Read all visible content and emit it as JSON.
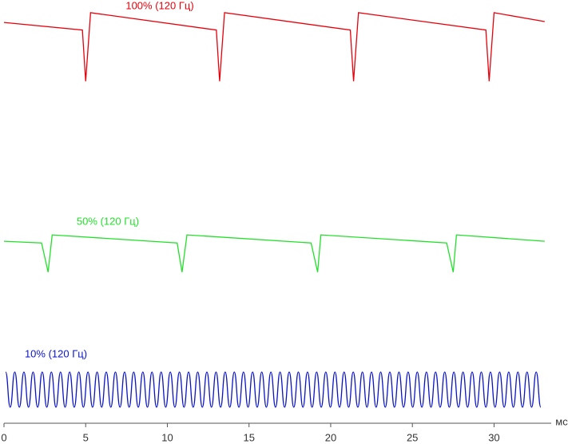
{
  "chart_data": {
    "type": "line",
    "x_unit_label": "мс",
    "xlim": [
      0,
      33.5
    ],
    "xticks": [
      0,
      5,
      10,
      15,
      20,
      25,
      30
    ],
    "ylim": [
      0,
      100
    ],
    "series": [
      {
        "name": "100% (120 Гц)",
        "color": "#e8000b",
        "x": [
          0,
          4.8,
          5.0,
          5.3,
          13.0,
          13.2,
          13.5,
          21.2,
          21.4,
          21.7,
          29.5,
          29.7,
          30.0,
          33.1
        ],
        "values": [
          94.7,
          92.9,
          80.8,
          97.0,
          92.9,
          80.8,
          97.0,
          92.9,
          80.8,
          97.0,
          92.9,
          80.8,
          97.0,
          94.9
        ]
      },
      {
        "name": "50% (120 Гц)",
        "color": "#22e02a",
        "x": [
          0,
          2.3,
          2.7,
          2.95,
          10.6,
          10.9,
          11.2,
          18.8,
          19.2,
          19.4,
          27.1,
          27.5,
          27.7,
          33.1
        ],
        "values": [
          43.0,
          42.6,
          35.7,
          44.5,
          42.6,
          35.7,
          44.5,
          42.6,
          35.7,
          44.5,
          42.6,
          35.7,
          44.5,
          43.0
        ]
      },
      {
        "name": "10% (120 Гц)",
        "color": "#0a14c8",
        "smooth": true,
        "x": [
          0.1,
          0.38,
          0.66,
          0.94,
          1.22,
          1.5,
          1.78,
          2.06,
          2.34,
          2.62,
          2.9,
          3.18,
          3.46,
          3.74,
          4.02,
          4.3,
          4.58,
          4.86,
          5.14,
          5.42,
          5.7,
          5.98,
          6.26,
          6.54,
          6.82,
          7.1,
          7.38,
          7.66,
          7.94,
          8.22,
          8.5,
          8.78,
          9.06,
          9.34,
          9.62,
          9.9,
          10.18,
          10.46,
          10.74,
          11.02,
          11.3,
          11.58,
          11.86,
          12.14,
          12.42,
          12.7,
          12.98,
          13.26,
          13.54,
          13.82,
          14.1,
          14.38,
          14.66,
          14.94,
          15.22,
          15.5,
          15.78,
          16.06,
          16.34,
          16.62,
          16.9,
          17.18,
          17.46,
          17.74,
          18.02,
          18.3,
          18.58,
          18.86,
          19.14,
          19.42,
          19.7,
          19.98,
          20.26,
          20.54,
          20.82,
          21.1,
          21.38,
          21.66,
          21.94,
          22.22,
          22.5,
          22.78,
          23.06,
          23.34,
          23.62,
          23.9,
          24.18,
          24.46,
          24.74,
          25.02,
          25.3,
          25.58,
          25.86,
          26.14,
          26.42,
          26.7,
          26.98,
          27.26,
          27.54,
          27.82,
          28.1,
          28.38,
          28.66,
          28.94,
          29.22,
          29.5,
          29.78,
          30.06,
          30.34,
          30.62,
          30.9,
          31.18,
          31.46,
          31.74,
          32.02,
          32.3,
          32.58,
          32.86
        ],
        "values": [
          12.1,
          3.8,
          12.1,
          3.8,
          12.1,
          3.8,
          12.1,
          3.8,
          12.1,
          3.8,
          12.1,
          3.8,
          12.1,
          3.8,
          12.1,
          3.8,
          12.1,
          3.8,
          12.1,
          3.8,
          12.1,
          3.8,
          12.1,
          3.8,
          12.1,
          3.8,
          12.1,
          3.8,
          12.1,
          3.8,
          12.1,
          3.8,
          12.1,
          3.8,
          12.1,
          3.8,
          12.1,
          3.8,
          12.1,
          3.8,
          12.1,
          3.8,
          12.1,
          3.8,
          12.1,
          3.8,
          12.1,
          3.8,
          12.1,
          3.8,
          12.1,
          3.8,
          12.1,
          3.8,
          12.1,
          3.8,
          12.1,
          3.8,
          12.1,
          3.8,
          12.1,
          3.8,
          12.1,
          3.8,
          12.1,
          3.8,
          12.1,
          3.8,
          12.1,
          3.8,
          12.1,
          3.8,
          12.1,
          3.8,
          12.1,
          3.8,
          12.1,
          3.8,
          12.1,
          3.8,
          12.1,
          3.8,
          12.1,
          3.8,
          12.1,
          3.8,
          12.1,
          3.8,
          12.1,
          3.8,
          12.1,
          3.8,
          12.1,
          3.8,
          12.1,
          3.8,
          12.1,
          3.8,
          12.1,
          3.8,
          12.1,
          3.8,
          12.1,
          3.8,
          12.1,
          3.8,
          12.1,
          3.8,
          12.1,
          3.8,
          12.1,
          3.8,
          12.1,
          3.8,
          12.1,
          3.8,
          12.1,
          3.8
        ]
      }
    ]
  }
}
